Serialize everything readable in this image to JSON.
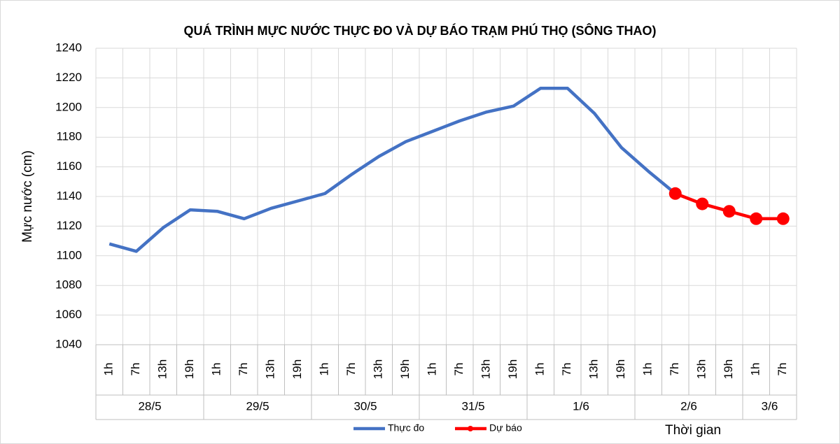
{
  "chart_data": {
    "type": "line",
    "title": "QUÁ TRÌNH MỰC NƯỚC THỰC ĐO VÀ DỰ BÁO TRẠM PHÚ THỌ (SÔNG THAO)",
    "y_label": "Mực nước (cm)",
    "x_label": "Thời gian",
    "categories": [
      "1h",
      "7h",
      "13h",
      "19h",
      "1h",
      "7h",
      "13h",
      "19h",
      "1h",
      "7h",
      "13h",
      "19h",
      "1h",
      "7h",
      "13h",
      "19h",
      "1h",
      "7h",
      "13h",
      "19h",
      "1h",
      "7h",
      "13h",
      "19h",
      "1h",
      "7h"
    ],
    "category_groups": [
      "28/5",
      "29/5",
      "30/5",
      "31/5",
      "1/6",
      "2/6",
      "3/6"
    ],
    "group_sizes": [
      4,
      4,
      4,
      4,
      4,
      4,
      2
    ],
    "series": [
      {
        "name": "Thực đo",
        "color": "#4472c4",
        "marker": false,
        "values": [
          1108,
          1103,
          1119,
          1131,
          1130,
          1125,
          1132,
          1137,
          1142,
          1155,
          1167,
          1177,
          1184,
          1191,
          1197,
          1201,
          1213,
          1213,
          1196,
          1173,
          1157,
          1142,
          null,
          null,
          null,
          null
        ]
      },
      {
        "name": "Dự báo",
        "color": "#ff0000",
        "marker": true,
        "values": [
          null,
          null,
          null,
          null,
          null,
          null,
          null,
          null,
          null,
          null,
          null,
          null,
          null,
          null,
          null,
          null,
          null,
          null,
          null,
          null,
          null,
          1142,
          1135,
          1130,
          1125,
          1125
        ]
      }
    ],
    "ylim": [
      1040,
      1240
    ],
    "yticks": [
      1040,
      1060,
      1080,
      1100,
      1120,
      1140,
      1160,
      1180,
      1200,
      1220,
      1240
    ],
    "grid": true,
    "legend": "bottom"
  }
}
